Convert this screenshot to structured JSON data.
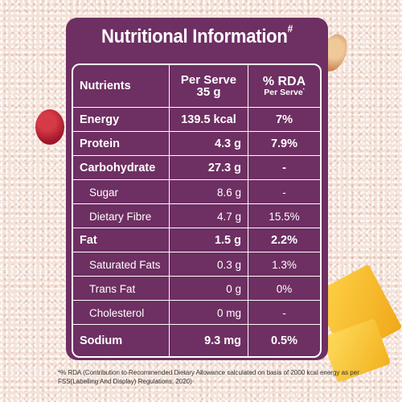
{
  "title": "Nutritional Information",
  "title_mark": "#",
  "header": {
    "nutrients": "Nutrients",
    "per_serve_line1": "Per Serve",
    "per_serve_line2": "35 g",
    "rda_line1": "% RDA",
    "rda_line2": "Per Serve",
    "rda_mark": "*"
  },
  "rows": [
    {
      "name": "Energy",
      "per_serve": "139.5 kcal",
      "rda": "7%"
    },
    {
      "name": "Protein",
      "per_serve": "4.3 g",
      "rda": "7.9%"
    },
    {
      "name": "Carbohydrate",
      "per_serve": "27.3 g",
      "rda": "-"
    },
    {
      "name": "Sugar",
      "per_serve": "8.6 g",
      "rda": "-"
    },
    {
      "name": "Dietary Fibre",
      "per_serve": "4.7 g",
      "rda": "15.5%"
    },
    {
      "name": "Fat",
      "per_serve": "1.5 g",
      "rda": "2.2%"
    },
    {
      "name": "Saturated Fats",
      "per_serve": "0.3 g",
      "rda": "1.3%"
    },
    {
      "name": "Trans Fat",
      "per_serve": "0 g",
      "rda": "0%"
    },
    {
      "name": "Cholesterol",
      "per_serve": "0 mg",
      "rda": "-"
    },
    {
      "name": "Sodium",
      "per_serve": "9.3 mg",
      "rda": "0.5%"
    }
  ],
  "footnote": "*% RDA (Contribution to Recommended Dietary Allowance calculated on basis of 2000 kcal energy as per FSS(Labelling And Display) Regulations, 2020)",
  "colors": {
    "panel": "#6e2f62",
    "background": "#f4e2d9",
    "text": "#ffffff"
  }
}
